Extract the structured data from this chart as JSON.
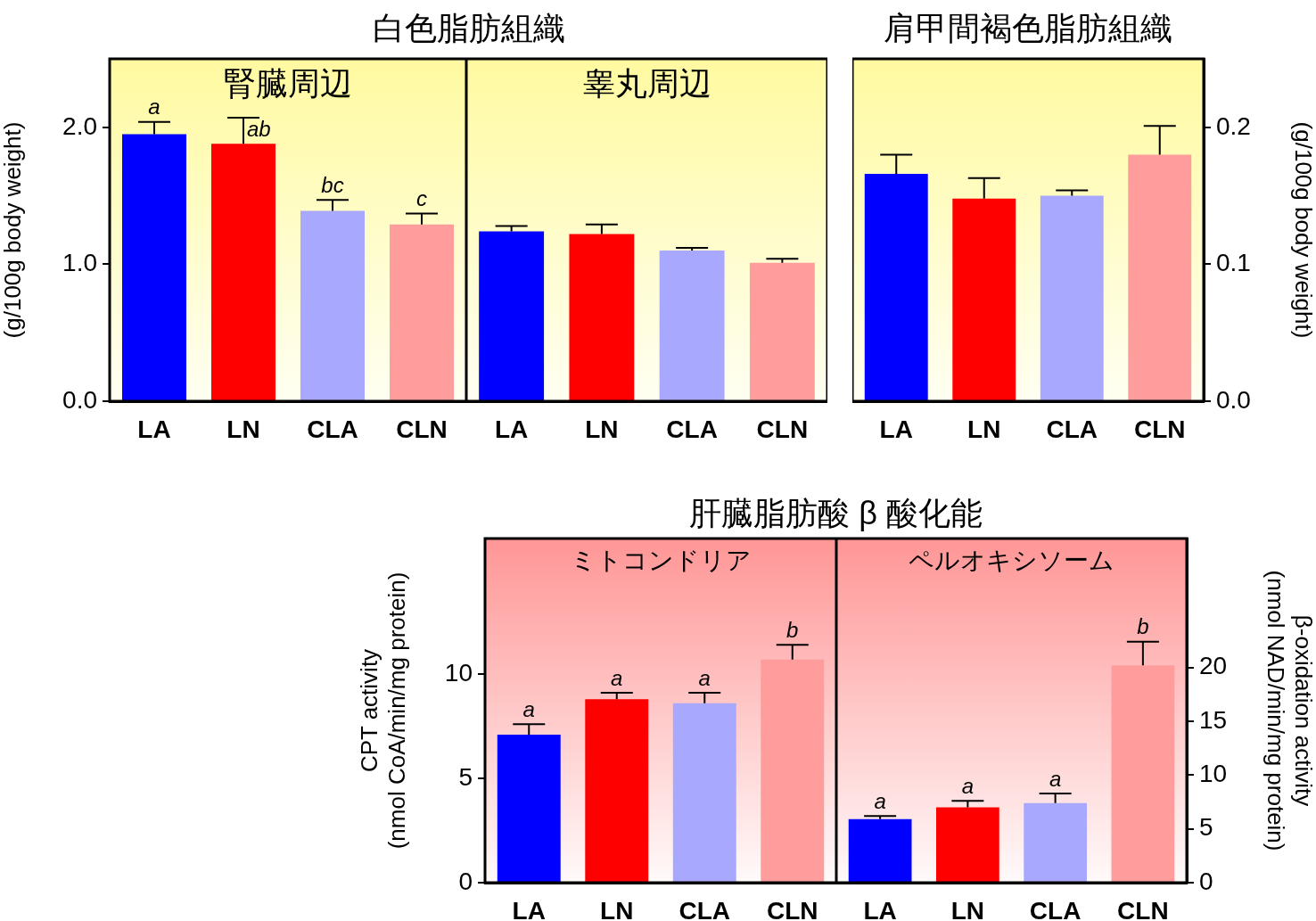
{
  "chart_data": [
    {
      "type": "bar",
      "title": "白色脂肪組織",
      "subtitle": "腎臓周辺",
      "ylabel": "(g/100g body weight)",
      "categories": [
        "LA",
        "LN",
        "CLA",
        "CLN"
      ],
      "values": [
        1.95,
        1.88,
        1.39,
        1.29
      ],
      "errors": [
        0.09,
        0.19,
        0.08,
        0.08
      ],
      "colors": [
        "#0000ff",
        "#ff0000",
        "#a8a8ff",
        "#ff9c9c"
      ],
      "ylim": [
        0,
        2.5
      ],
      "yticks": [
        {
          "value": 0,
          "label": "0.0"
        },
        {
          "value": 1,
          "label": "1.0"
        },
        {
          "value": 2,
          "label": "2.0"
        }
      ],
      "annotations": [
        {
          "text": "a",
          "x": "LA",
          "y": 2.04
        },
        {
          "text": "ab",
          "x": "LN",
          "y": 2.07
        },
        {
          "text": "bc",
          "x": "CLA",
          "y": 1.47
        },
        {
          "text": "c",
          "x": "CLN",
          "y": 1.37
        }
      ]
    },
    {
      "type": "bar",
      "subtitle": "睾丸周辺",
      "categories": [
        "LA",
        "LN",
        "CLA",
        "CLN"
      ],
      "values": [
        1.24,
        1.22,
        1.1,
        1.01
      ],
      "errors": [
        0.04,
        0.07,
        0.02,
        0.03
      ],
      "colors": [
        "#0000ff",
        "#ff0000",
        "#a8a8ff",
        "#ff9c9c"
      ],
      "ylim": [
        0,
        2.5
      ],
      "tick_labels": "x"
    },
    {
      "type": "bar",
      "title": "肩甲間褐色脂肪組織",
      "ylabel": "(g/100g body weight)",
      "categories": [
        "LA",
        "LN",
        "CLA",
        "CLN"
      ],
      "values": [
        0.166,
        0.148,
        0.15,
        0.18
      ],
      "errors": [
        0.014,
        0.015,
        0.004,
        0.021
      ],
      "colors": [
        "#0000ff",
        "#ff0000",
        "#a8a8ff",
        "#ff9c9c"
      ],
      "ylim": [
        0,
        0.25
      ],
      "yticks": [
        {
          "value": 0,
          "label": "0.0"
        },
        0.1,
        0.2
      ]
    },
    {
      "type": "bar",
      "title": "肝臓脂肪酸 β 酸化能",
      "subtitle": "ミトコンドリア",
      "ylabel": "CPT activity\n(nmol CoA/min/mg protein)",
      "categories": [
        "LA",
        "LN",
        "CLA",
        "CLN"
      ],
      "values": [
        7.1,
        8.8,
        8.6,
        10.7
      ],
      "errors": [
        0.5,
        0.3,
        0.5,
        0.7
      ],
      "colors": [
        "#0000ff",
        "#ff0000",
        "#a8a8ff",
        "#ff9c9c"
      ],
      "ylim": [
        0,
        16.5
      ],
      "yticks": [
        0,
        5,
        10
      ],
      "annotations": [
        {
          "text": "a",
          "x": "LA",
          "y": 7.6
        },
        {
          "text": "a",
          "x": "LN",
          "y": 9.1
        },
        {
          "text": "a",
          "x": "CLA",
          "y": 9.1
        },
        {
          "text": "b",
          "x": "CLN",
          "y": 11.4
        }
      ]
    },
    {
      "type": "bar",
      "subtitle": "ペルオキシソーム",
      "ylabel": "β-oxidation activity\n(nmol NAD/min/mg protein)",
      "categories": [
        "LA",
        "LN",
        "CLA",
        "CLN"
      ],
      "values": [
        5.9,
        7.0,
        7.4,
        20.2
      ],
      "errors": [
        0.3,
        0.6,
        0.9,
        2.2
      ],
      "colors": [
        "#0000ff",
        "#ff0000",
        "#a8a8ff",
        "#ff9c9c"
      ],
      "ylim": [
        0,
        32
      ],
      "yticks": [
        0,
        5,
        10,
        15,
        20
      ],
      "annotations": [
        {
          "text": "a",
          "x": "LA",
          "y": 6.2
        },
        {
          "text": "a",
          "x": "LN",
          "y": 7.6
        },
        {
          "text": "a",
          "x": "CLA",
          "y": 8.3
        },
        {
          "text": "b",
          "x": "CLN",
          "y": 22.4
        }
      ]
    }
  ]
}
